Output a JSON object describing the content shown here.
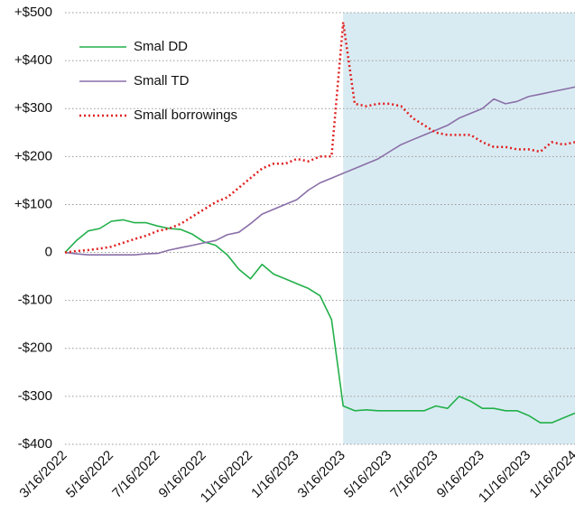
{
  "chart_data": {
    "type": "line",
    "categories": [
      "3/16/2022",
      null,
      null,
      null,
      "5/16/2022",
      null,
      null,
      null,
      "7/16/2022",
      null,
      null,
      null,
      "9/16/2022",
      null,
      null,
      null,
      "11/16/2022",
      null,
      null,
      null,
      "1/16/2023",
      null,
      null,
      null,
      "3/16/2023",
      null,
      null,
      null,
      "5/16/2023",
      null,
      null,
      null,
      "7/16/2023",
      null,
      null,
      null,
      "9/16/2023",
      null,
      null,
      null,
      "11/16/2023",
      null,
      null,
      null,
      "1/16/2024"
    ],
    "series": [
      {
        "name": "Smal DD",
        "color": "#22b04a",
        "dash": "solid",
        "values": [
          0,
          25,
          45,
          50,
          65,
          68,
          62,
          62,
          55,
          50,
          48,
          38,
          22,
          15,
          -5,
          -35,
          -55,
          -25,
          -45,
          -55,
          -65,
          -75,
          -90,
          -140,
          -320,
          -330,
          -328,
          -330,
          -330,
          -330,
          -330,
          -330,
          -320,
          -325,
          -300,
          -310,
          -325,
          -325,
          -330,
          -330,
          -340,
          -355,
          -355,
          -345,
          -335
        ]
      },
      {
        "name": "Small TD",
        "color": "#8a6fa8",
        "dash": "solid",
        "values": [
          0,
          -3,
          -5,
          -5,
          -5,
          -5,
          -5,
          -3,
          -2,
          5,
          10,
          15,
          20,
          25,
          37,
          42,
          60,
          80,
          90,
          100,
          110,
          130,
          145,
          155,
          165,
          175,
          185,
          195,
          210,
          225,
          235,
          245,
          255,
          265,
          280,
          290,
          300,
          320,
          310,
          315,
          325,
          330,
          335,
          340,
          345
        ]
      },
      {
        "name": "Small borrowings",
        "color": "#e02020",
        "dash": "dotted",
        "values": [
          0,
          3,
          5,
          8,
          12,
          20,
          28,
          35,
          45,
          50,
          60,
          75,
          90,
          105,
          115,
          135,
          155,
          175,
          185,
          185,
          195,
          190,
          200,
          200,
          480,
          310,
          305,
          310,
          310,
          305,
          280,
          265,
          250,
          245,
          245,
          245,
          230,
          220,
          220,
          215,
          215,
          210,
          230,
          225,
          230
        ]
      }
    ],
    "ylim": [
      -400,
      500
    ],
    "yticks": [
      {
        "value": -400,
        "label": "-$400"
      },
      {
        "value": -300,
        "label": "-$300"
      },
      {
        "value": -200,
        "label": "-$200"
      },
      {
        "value": -100,
        "label": "-$100"
      },
      0,
      {
        "value": 100,
        "label": "+$100"
      },
      {
        "value": 200,
        "label": "+$200"
      },
      {
        "value": 300,
        "label": "+$300"
      },
      {
        "value": 400,
        "label": "+$400"
      },
      {
        "value": 500,
        "label": "+$500"
      }
    ],
    "grid": true,
    "legend": "upper-left",
    "shaded_from": "3/16/2023",
    "shade_color": "#d9ebf2"
  }
}
